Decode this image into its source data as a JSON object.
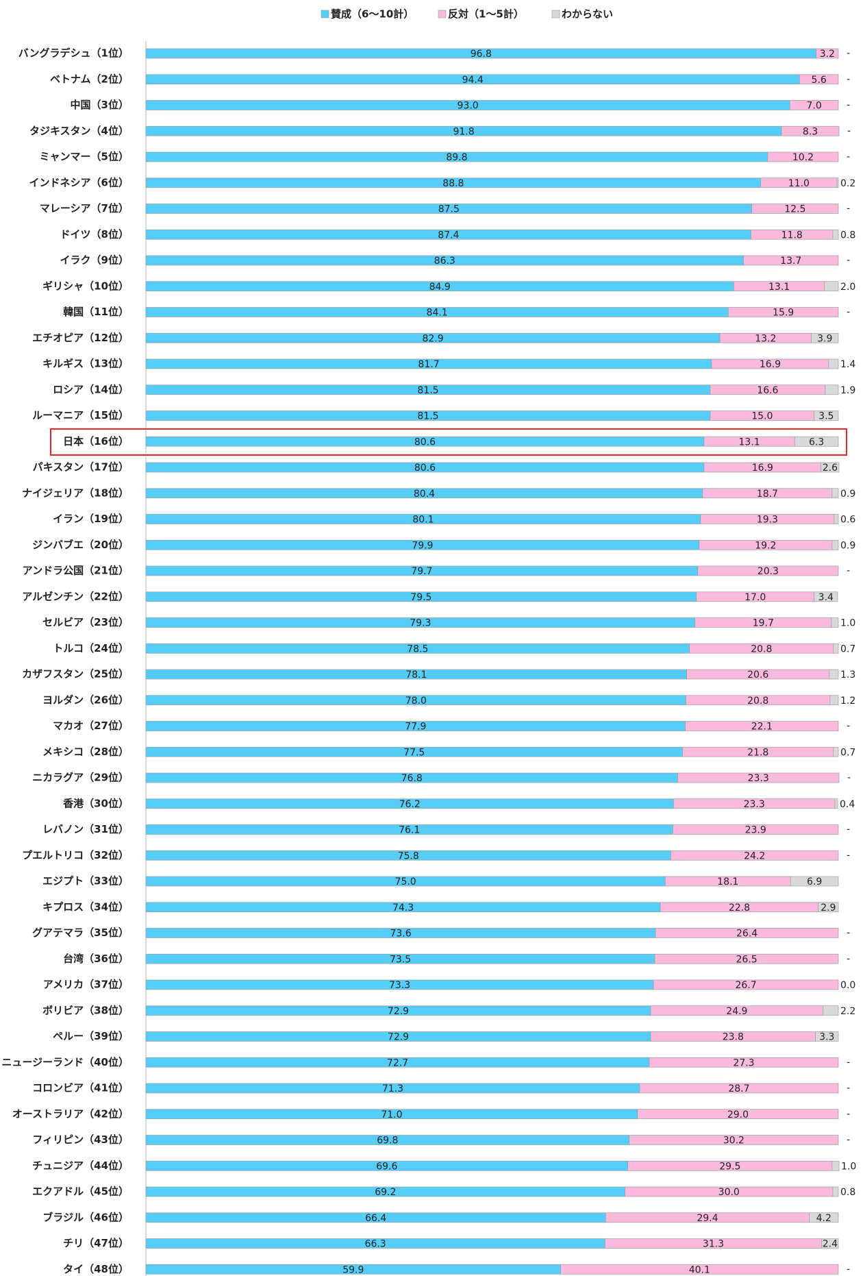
{
  "chart_data": {
    "type": "stacked-bar-horizontal",
    "categories": [
      "バングラデシュ（1位）",
      "ベトナム（2位）",
      "中国（3位）",
      "タジキスタン（4位）",
      "ミャンマー（5位）",
      "インドネシア（6位）",
      "マレーシア（7位）",
      "ドイツ（8位）",
      "イラク（9位）",
      "ギリシャ（10位）",
      "韓国（11位）",
      "エチオピア（12位）",
      "キルギス（13位）",
      "ロシア（14位）",
      "ルーマニア（15位）",
      "日本（16位）",
      "パキスタン（17位）",
      "ナイジェリア（18位）",
      "イラン（19位）",
      "ジンバブエ（20位）",
      "アンドラ公国（21位）",
      "アルゼンチン（22位）",
      "セルビア（23位）",
      "トルコ（24位）",
      "カザフスタン（25位）",
      "ヨルダン（26位）",
      "マカオ（27位）",
      "メキシコ（28位）",
      "ニカラグア（29位）",
      "香港（30位）",
      "レバノン（31位）",
      "プエルトリコ（32位）",
      "エジプト（33位）",
      "キプロス（34位）",
      "グアテマラ（35位）",
      "台湾（36位）",
      "アメリカ（37位）",
      "ボリビア（38位）",
      "ペルー（39位）",
      "ニュージーランド（40位）",
      "コロンビア（41位）",
      "オーストラリア（42位）",
      "フィリピン（43位）",
      "チュニジア（44位）",
      "エクアドル（45位）",
      "ブラジル（46位）",
      "チリ（47位）",
      "タイ（48位）"
    ],
    "xlim": [
      0,
      100
    ],
    "legend": "top",
    "series": [
      {
        "name": "賛成（6～10計）",
        "color": "#55cdf7",
        "values": [
          96.8,
          94.4,
          93.0,
          91.8,
          89.8,
          88.8,
          87.5,
          87.4,
          86.3,
          84.9,
          84.1,
          82.9,
          81.7,
          81.5,
          81.5,
          80.6,
          80.6,
          80.4,
          80.1,
          79.9,
          79.7,
          79.5,
          79.3,
          78.5,
          78.1,
          78.0,
          77.9,
          77.5,
          76.8,
          76.2,
          76.1,
          75.8,
          75.0,
          74.3,
          73.6,
          73.5,
          73.3,
          72.9,
          72.9,
          72.7,
          71.3,
          71.0,
          69.8,
          69.6,
          69.2,
          66.4,
          66.3,
          59.9
        ],
        "value_labels": [
          "96.8",
          "94.4",
          "93.0",
          "91.8",
          "89.8",
          "88.8",
          "87.5",
          "87.4",
          "86.3",
          "84.9",
          "84.1",
          "82.9",
          "81.7",
          "81.5",
          "81.5",
          "80.6",
          "80.6",
          "80.4",
          "80.1",
          "79.9",
          "79.7",
          "79.5",
          "79.3",
          "78.5",
          "78.1",
          "78.0",
          "77.9",
          "77.5",
          "76.8",
          "76.2",
          "76.1",
          "75.8",
          "75.0",
          "74.3",
          "73.6",
          "73.5",
          "73.3",
          "72.9",
          "72.9",
          "72.7",
          "71.3",
          "71.0",
          "69.8",
          "69.6",
          "69.2",
          "66.4",
          "66.3",
          "59.9"
        ]
      },
      {
        "name": "反対（1～5計）",
        "color": "#f9bade",
        "values": [
          3.2,
          5.6,
          7.0,
          8.3,
          10.2,
          11.0,
          12.5,
          11.8,
          13.7,
          13.1,
          15.9,
          13.2,
          16.9,
          16.6,
          15.0,
          13.1,
          16.9,
          18.7,
          19.3,
          19.2,
          20.3,
          17.0,
          19.7,
          20.8,
          20.6,
          20.8,
          22.1,
          21.8,
          23.3,
          23.3,
          23.9,
          24.2,
          18.1,
          22.8,
          26.4,
          26.5,
          26.7,
          24.9,
          23.8,
          27.3,
          28.7,
          29.0,
          30.2,
          29.5,
          30.0,
          29.4,
          31.3,
          40.1
        ],
        "value_labels": [
          "3.2",
          "5.6",
          "7.0",
          "8.3",
          "10.2",
          "11.0",
          "12.5",
          "11.8",
          "13.7",
          "13.1",
          "15.9",
          "13.2",
          "16.9",
          "16.6",
          "15.0",
          "13.1",
          "16.9",
          "18.7",
          "19.3",
          "19.2",
          "20.3",
          "17.0",
          "19.7",
          "20.8",
          "20.6",
          "20.8",
          "22.1",
          "21.8",
          "23.3",
          "23.3",
          "23.9",
          "24.2",
          "18.1",
          "22.8",
          "26.4",
          "26.5",
          "26.7",
          "24.9",
          "23.8",
          "27.3",
          "28.7",
          "29.0",
          "30.2",
          "29.5",
          "30.0",
          "29.4",
          "31.3",
          "40.1"
        ]
      },
      {
        "name": "わからない",
        "color": "#d9d9d9",
        "values": [
          null,
          null,
          null,
          null,
          null,
          0.2,
          null,
          0.8,
          null,
          2.0,
          null,
          3.9,
          1.4,
          1.9,
          3.5,
          6.3,
          2.6,
          0.9,
          0.6,
          0.9,
          null,
          3.4,
          1.0,
          0.7,
          1.3,
          1.2,
          null,
          0.7,
          null,
          0.4,
          null,
          null,
          6.9,
          2.9,
          null,
          null,
          0.0,
          2.2,
          3.3,
          null,
          null,
          null,
          null,
          1.0,
          0.8,
          4.2,
          2.4,
          null
        ],
        "value_labels": [
          "-",
          "-",
          "-",
          "-",
          "-",
          "0.2",
          "-",
          "0.8",
          "-",
          "2.0",
          "-",
          "3.9",
          "1.4",
          "1.9",
          "3.5",
          "6.3",
          "2.6",
          "0.9",
          "0.6",
          "0.9",
          "-",
          "3.4",
          "1.0",
          "0.7",
          "1.3",
          "1.2",
          "-",
          "0.7",
          "-",
          "0.4",
          "-",
          "-",
          "6.9",
          "2.9",
          "-",
          "-",
          "0.0",
          "2.2",
          "3.3",
          "-",
          "-",
          "-",
          "-",
          "1.0",
          "0.8",
          "4.2",
          "2.4",
          "-"
        ]
      }
    ]
  }
}
